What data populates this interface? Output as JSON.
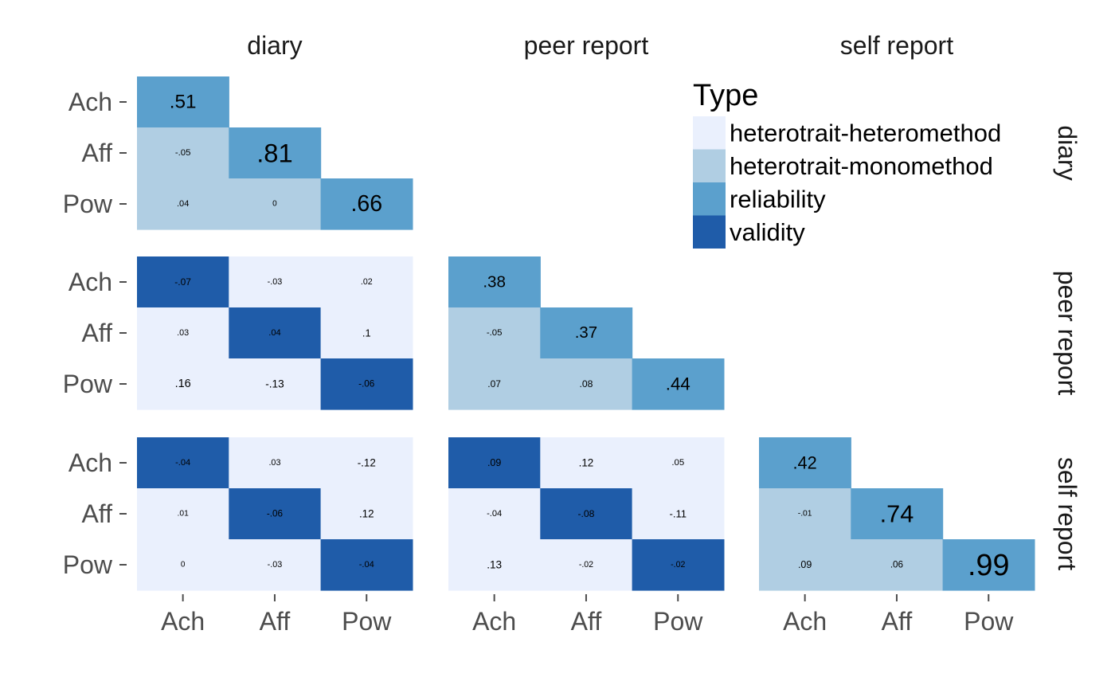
{
  "chart_data": {
    "type": "heatmap",
    "column_facets": [
      "diary",
      "peer report",
      "self report"
    ],
    "row_facets": [
      "diary",
      "peer report",
      "self report"
    ],
    "traits": [
      "Ach",
      "Aff",
      "Pow"
    ],
    "legend": {
      "title": "Type",
      "items": [
        {
          "key": "hh",
          "label": "heterotrait-heteromethod",
          "color": "#eaf0fd"
        },
        {
          "key": "hm",
          "label": "heterotrait-monomethod",
          "color": "#b0cee3"
        },
        {
          "key": "rel",
          "label": "reliability",
          "color": "#5ba0cd"
        },
        {
          "key": "val",
          "label": "validity",
          "color": "#1f5ca9"
        }
      ],
      "placement": "top-right"
    },
    "panels": [
      {
        "row": "diary",
        "col": "diary",
        "cells": [
          {
            "r": "Ach",
            "c": "Ach",
            "value": 0.51,
            "label": ".51",
            "type": "rel"
          },
          {
            "r": "Aff",
            "c": "Ach",
            "value": -0.05,
            "label": "-.05",
            "type": "hm"
          },
          {
            "r": "Aff",
            "c": "Aff",
            "value": 0.81,
            "label": ".81",
            "type": "rel"
          },
          {
            "r": "Pow",
            "c": "Ach",
            "value": 0.04,
            "label": ".04",
            "type": "hm"
          },
          {
            "r": "Pow",
            "c": "Aff",
            "value": 0,
            "label": "0",
            "type": "hm"
          },
          {
            "r": "Pow",
            "c": "Pow",
            "value": 0.66,
            "label": ".66",
            "type": "rel"
          }
        ]
      },
      {
        "row": "peer report",
        "col": "diary",
        "cells": [
          {
            "r": "Ach",
            "c": "Ach",
            "value": -0.07,
            "label": "-.07",
            "type": "val"
          },
          {
            "r": "Ach",
            "c": "Aff",
            "value": -0.03,
            "label": "-.03",
            "type": "hh"
          },
          {
            "r": "Ach",
            "c": "Pow",
            "value": 0.02,
            "label": ".02",
            "type": "hh"
          },
          {
            "r": "Aff",
            "c": "Ach",
            "value": 0.03,
            "label": ".03",
            "type": "hh"
          },
          {
            "r": "Aff",
            "c": "Aff",
            "value": 0.04,
            "label": ".04",
            "type": "val"
          },
          {
            "r": "Aff",
            "c": "Pow",
            "value": 0.1,
            "label": ".1",
            "type": "hh"
          },
          {
            "r": "Pow",
            "c": "Ach",
            "value": 0.16,
            "label": ".16",
            "type": "hh"
          },
          {
            "r": "Pow",
            "c": "Aff",
            "value": -0.13,
            "label": "-.13",
            "type": "hh"
          },
          {
            "r": "Pow",
            "c": "Pow",
            "value": -0.06,
            "label": "-.06",
            "type": "val"
          }
        ]
      },
      {
        "row": "peer report",
        "col": "peer report",
        "cells": [
          {
            "r": "Ach",
            "c": "Ach",
            "value": 0.38,
            "label": ".38",
            "type": "rel"
          },
          {
            "r": "Aff",
            "c": "Ach",
            "value": -0.05,
            "label": "-.05",
            "type": "hm"
          },
          {
            "r": "Aff",
            "c": "Aff",
            "value": 0.37,
            "label": ".37",
            "type": "rel"
          },
          {
            "r": "Pow",
            "c": "Ach",
            "value": 0.07,
            "label": ".07",
            "type": "hm"
          },
          {
            "r": "Pow",
            "c": "Aff",
            "value": 0.08,
            "label": ".08",
            "type": "hm"
          },
          {
            "r": "Pow",
            "c": "Pow",
            "value": 0.44,
            "label": ".44",
            "type": "rel"
          }
        ]
      },
      {
        "row": "self report",
        "col": "diary",
        "cells": [
          {
            "r": "Ach",
            "c": "Ach",
            "value": -0.04,
            "label": "-.04",
            "type": "val"
          },
          {
            "r": "Ach",
            "c": "Aff",
            "value": 0.03,
            "label": ".03",
            "type": "hh"
          },
          {
            "r": "Ach",
            "c": "Pow",
            "value": -0.12,
            "label": "-.12",
            "type": "hh"
          },
          {
            "r": "Aff",
            "c": "Ach",
            "value": 0.01,
            "label": ".01",
            "type": "hh"
          },
          {
            "r": "Aff",
            "c": "Aff",
            "value": -0.06,
            "label": "-.06",
            "type": "val"
          },
          {
            "r": "Aff",
            "c": "Pow",
            "value": 0.12,
            "label": ".12",
            "type": "hh"
          },
          {
            "r": "Pow",
            "c": "Ach",
            "value": 0,
            "label": "0",
            "type": "hh"
          },
          {
            "r": "Pow",
            "c": "Aff",
            "value": -0.03,
            "label": "-.03",
            "type": "hh"
          },
          {
            "r": "Pow",
            "c": "Pow",
            "value": -0.04,
            "label": "-.04",
            "type": "val"
          }
        ]
      },
      {
        "row": "self report",
        "col": "peer report",
        "cells": [
          {
            "r": "Ach",
            "c": "Ach",
            "value": 0.09,
            "label": ".09",
            "type": "val"
          },
          {
            "r": "Ach",
            "c": "Aff",
            "value": 0.12,
            "label": ".12",
            "type": "hh"
          },
          {
            "r": "Ach",
            "c": "Pow",
            "value": 0.05,
            "label": ".05",
            "type": "hh"
          },
          {
            "r": "Aff",
            "c": "Ach",
            "value": -0.04,
            "label": "-.04",
            "type": "hh"
          },
          {
            "r": "Aff",
            "c": "Aff",
            "value": -0.08,
            "label": "-.08",
            "type": "val"
          },
          {
            "r": "Aff",
            "c": "Pow",
            "value": -0.11,
            "label": "-.11",
            "type": "hh"
          },
          {
            "r": "Pow",
            "c": "Ach",
            "value": 0.13,
            "label": ".13",
            "type": "hh"
          },
          {
            "r": "Pow",
            "c": "Aff",
            "value": -0.02,
            "label": "-.02",
            "type": "hh"
          },
          {
            "r": "Pow",
            "c": "Pow",
            "value": -0.02,
            "label": "-.02",
            "type": "val"
          }
        ]
      },
      {
        "row": "self report",
        "col": "self report",
        "cells": [
          {
            "r": "Ach",
            "c": "Ach",
            "value": 0.42,
            "label": ".42",
            "type": "rel"
          },
          {
            "r": "Aff",
            "c": "Ach",
            "value": -0.01,
            "label": "-.01",
            "type": "hm"
          },
          {
            "r": "Aff",
            "c": "Aff",
            "value": 0.74,
            "label": ".74",
            "type": "rel"
          },
          {
            "r": "Pow",
            "c": "Ach",
            "value": 0.09,
            "label": ".09",
            "type": "hm"
          },
          {
            "r": "Pow",
            "c": "Aff",
            "value": 0.06,
            "label": ".06",
            "type": "hm"
          },
          {
            "r": "Pow",
            "c": "Pow",
            "value": 0.99,
            "label": ".99",
            "type": "rel"
          }
        ]
      }
    ],
    "grid": false
  }
}
